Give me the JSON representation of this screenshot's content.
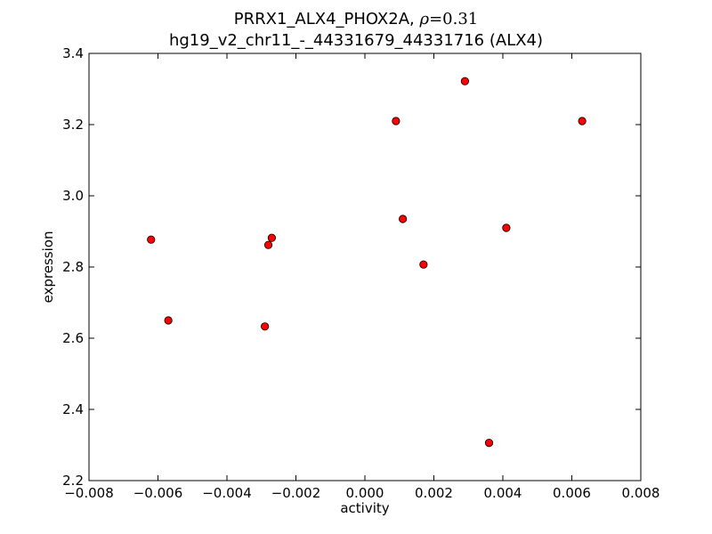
{
  "chart_data": {
    "type": "scatter",
    "title": {
      "prefix": "PRRX1_ALX4_PHOX2A, ",
      "rho_symbol": "ρ",
      "rho_equals": "=",
      "rho_value": "0.31",
      "subtitle": "hg19_v2_chr11_-_44331679_44331716 (ALX4)"
    },
    "xlabel": "activity",
    "ylabel": "expression",
    "xlim": [
      -0.008,
      0.008
    ],
    "ylim": [
      2.2,
      3.4
    ],
    "xticks": [
      -0.008,
      -0.006,
      -0.004,
      -0.002,
      0.0,
      0.002,
      0.004,
      0.006,
      0.008
    ],
    "xtick_labels": [
      "−0.008",
      "−0.006",
      "−0.004",
      "−0.002",
      "0.000",
      "0.002",
      "0.004",
      "0.006",
      "0.008"
    ],
    "yticks": [
      2.2,
      2.4,
      2.6,
      2.8,
      3.0,
      3.2,
      3.4
    ],
    "ytick_labels": [
      "2.2",
      "2.4",
      "2.6",
      "2.8",
      "3.0",
      "3.2",
      "3.4"
    ],
    "grid": false,
    "marker_color": "#ff0000",
    "marker_edge": "#000000",
    "points": [
      {
        "x": -0.0062,
        "y": 2.877
      },
      {
        "x": -0.0057,
        "y": 2.65
      },
      {
        "x": -0.0029,
        "y": 2.633
      },
      {
        "x": -0.0028,
        "y": 2.862
      },
      {
        "x": -0.0027,
        "y": 2.882
      },
      {
        "x": 0.0009,
        "y": 3.21
      },
      {
        "x": 0.0011,
        "y": 2.935
      },
      {
        "x": 0.0017,
        "y": 2.807
      },
      {
        "x": 0.0029,
        "y": 3.322
      },
      {
        "x": 0.0036,
        "y": 2.306
      },
      {
        "x": 0.0041,
        "y": 2.91
      },
      {
        "x": 0.0063,
        "y": 3.21
      }
    ]
  }
}
